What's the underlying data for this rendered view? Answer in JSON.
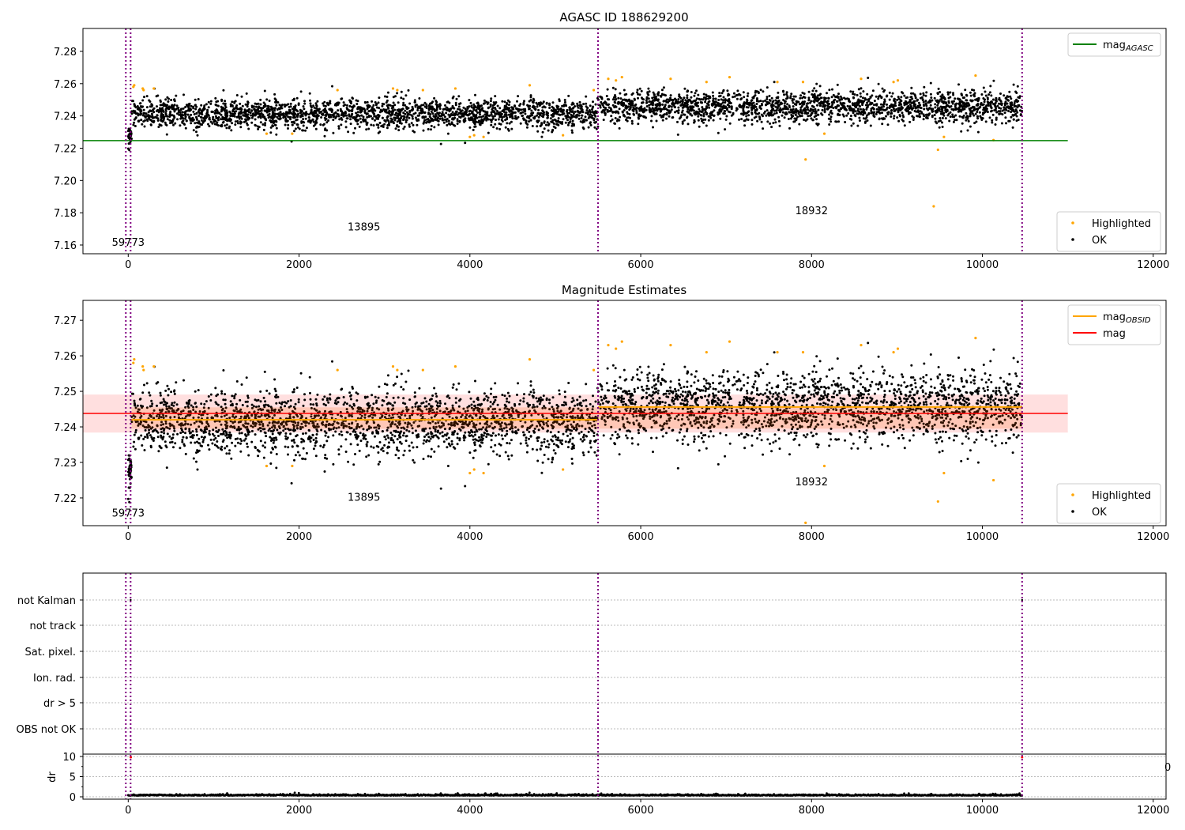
{
  "chart_data": [
    {
      "type": "scatter",
      "title": "AGASC ID 188629200",
      "xlim": [
        -530,
        12150
      ],
      "ylim": [
        7.1546,
        7.2942
      ],
      "xticks": [
        "0",
        "2000",
        "4000",
        "6000",
        "8000",
        "10000",
        "12000"
      ],
      "xtick_values": [
        0,
        2000,
        4000,
        6000,
        8000,
        10000,
        12000
      ],
      "yticks": [
        "7.16",
        "7.18",
        "7.20",
        "7.22",
        "7.24",
        "7.26",
        "7.28"
      ],
      "ytick_values": [
        7.16,
        7.18,
        7.2,
        7.22,
        7.24,
        7.26,
        7.28
      ],
      "legends": [
        {
          "placement": "top-right",
          "entries": [
            {
              "label": "mag",
              "sub": "AGASC",
              "color": "#008000",
              "kind": "line"
            }
          ]
        },
        {
          "placement": "bottom-right",
          "entries": [
            {
              "label": "Highlighted",
              "color": "#ffa500",
              "kind": "dot"
            },
            {
              "label": "OK",
              "color": "#000000",
              "kind": "dot"
            }
          ]
        }
      ],
      "hlines": [
        {
          "name": "mag-agasc",
          "y": 7.2247,
          "x": [
            -530,
            11000
          ],
          "color": "#008000"
        }
      ],
      "annotations": [
        {
          "text": "59773",
          "x": 0,
          "y": 7.1595
        },
        {
          "text": "13895",
          "x": 2760,
          "y": 7.169
        },
        {
          "text": "18932",
          "x": 8000,
          "y": 7.179
        }
      ]
    },
    {
      "type": "scatter",
      "title": "Magnitude Estimates",
      "xlim": [
        -530,
        12150
      ],
      "ylim": [
        7.2122,
        7.2756
      ],
      "xticks": [
        "0",
        "2000",
        "4000",
        "6000",
        "8000",
        "10000",
        "12000"
      ],
      "xtick_values": [
        0,
        2000,
        4000,
        6000,
        8000,
        10000,
        12000
      ],
      "yticks": [
        "7.22",
        "7.23",
        "7.24",
        "7.25",
        "7.26",
        "7.27"
      ],
      "ytick_values": [
        7.22,
        7.23,
        7.24,
        7.25,
        7.26,
        7.27
      ],
      "legends": [
        {
          "placement": "top-right",
          "entries": [
            {
              "label": "mag",
              "sub": "OBSID",
              "color": "#ffa500",
              "kind": "line"
            },
            {
              "label": "mag",
              "color": "#ff0000",
              "kind": "line"
            }
          ]
        },
        {
          "placement": "bottom-right",
          "entries": [
            {
              "label": "Highlighted",
              "color": "#ffa500",
              "kind": "dot"
            },
            {
              "label": "OK",
              "color": "#000000",
              "kind": "dot"
            }
          ]
        }
      ],
      "mag": {
        "value": 7.2438,
        "band": [
          7.2384,
          7.2491
        ],
        "x": [
          -530,
          11000
        ]
      },
      "mag_obsid": [
        {
          "x": [
            28,
            5500
          ],
          "value": 7.242
        },
        {
          "x": [
            5500,
            10465
          ],
          "value": 7.2456
        }
      ],
      "annotations": [
        {
          "text": "59773",
          "x": 0,
          "y": 7.2148
        },
        {
          "text": "13895",
          "x": 2760,
          "y": 7.2192
        },
        {
          "text": "18932",
          "x": 8000,
          "y": 7.2236
        }
      ]
    },
    {
      "type": "scatter",
      "title": "",
      "flag_categories": [
        "not Kalman",
        "not track",
        "Sat. pixel.",
        "Ion. rad.",
        "dr > 5",
        "OBS not OK"
      ],
      "flags": [
        {
          "category": "not Kalman",
          "x": 28
        },
        {
          "category": "not Kalman",
          "x": 10465
        }
      ],
      "dr": {
        "ylabel": "dr",
        "yticks": [
          "0",
          "5",
          "10"
        ],
        "ytick_values": [
          0,
          5,
          10
        ],
        "ylim": [
          -0.6,
          10.6
        ],
        "red_points": [
          {
            "x": 30,
            "y": 9.8
          },
          {
            "x": 10465,
            "y": 9.8
          }
        ],
        "typical": 0.3
      },
      "xticks": [
        "0",
        "2000",
        "4000",
        "6000",
        "8000",
        "10000",
        "12000"
      ],
      "xtick_values": [
        0,
        2000,
        4000,
        6000,
        8000,
        10000,
        12000
      ],
      "stray_label": "0"
    }
  ],
  "obsid_boundaries": [
    -28,
    28,
    5500,
    10465
  ],
  "segments": [
    {
      "name": "59773",
      "x": [
        0,
        40
      ],
      "mean": 7.228,
      "sd": 0.003,
      "n": 40
    },
    {
      "name": "13895",
      "x": [
        40,
        5500
      ],
      "mean": 7.2415,
      "sd": 0.0045,
      "n": 2200
    },
    {
      "name": "18932",
      "x": [
        5500,
        10465
      ],
      "mean": 7.2455,
      "sd": 0.005,
      "n": 2000
    }
  ],
  "highlighted": [
    [
      60,
      7.258
    ],
    [
      70,
      7.259
    ],
    [
      170,
      7.257
    ],
    [
      180,
      7.256
    ],
    [
      300,
      7.257
    ],
    [
      1620,
      7.229
    ],
    [
      1920,
      7.229
    ],
    [
      2450,
      7.256
    ],
    [
      3100,
      7.257
    ],
    [
      3150,
      7.256
    ],
    [
      3450,
      7.256
    ],
    [
      3830,
      7.257
    ],
    [
      4000,
      7.227
    ],
    [
      4050,
      7.228
    ],
    [
      4160,
      7.227
    ],
    [
      4700,
      7.259
    ],
    [
      5090,
      7.228
    ],
    [
      5450,
      7.256
    ],
    [
      5620,
      7.263
    ],
    [
      5710,
      7.262
    ],
    [
      5780,
      7.264
    ],
    [
      6350,
      7.263
    ],
    [
      6770,
      7.261
    ],
    [
      7040,
      7.264
    ],
    [
      7600,
      7.261
    ],
    [
      7900,
      7.261
    ],
    [
      7930,
      7.213
    ],
    [
      8150,
      7.229
    ],
    [
      8580,
      7.263
    ],
    [
      8960,
      7.261
    ],
    [
      9010,
      7.262
    ],
    [
      9430,
      7.184
    ],
    [
      9480,
      7.219
    ],
    [
      9550,
      7.227
    ],
    [
      9920,
      7.265
    ],
    [
      10130,
      7.225
    ]
  ],
  "colors": {
    "boundary": "#800080",
    "ok": "#000000",
    "highlight": "#ffa500",
    "band": "#ffc0c0"
  }
}
